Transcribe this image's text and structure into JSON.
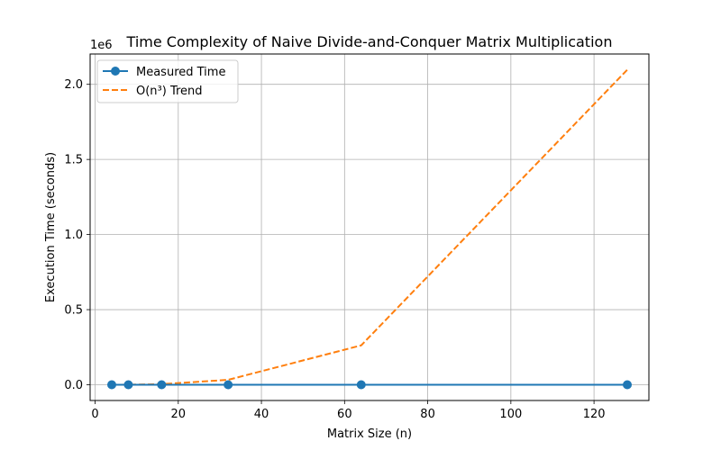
{
  "chart_data": {
    "type": "line",
    "title": "Time Complexity of Naive Divide-and-Conquer Matrix Multiplication",
    "xlabel": "Matrix Size (n)",
    "ylabel": "Execution Time (seconds)",
    "y_offset_label": "1e6",
    "xlim": [
      -1.2,
      133.2
    ],
    "ylim": [
      -104856,
      2201971
    ],
    "y_scale_factor": 1000000,
    "x_ticks": [
      0,
      20,
      40,
      60,
      80,
      100,
      120
    ],
    "y_ticks": [
      0,
      500000,
      1000000,
      1500000,
      2000000
    ],
    "y_tick_labels": [
      "0.0",
      "0.5",
      "1.0",
      "1.5",
      "2.0"
    ],
    "grid": true,
    "legend_position": "top-left",
    "series": [
      {
        "name": "Measured Time",
        "color": "#1f77b4",
        "style": "solid-with-markers",
        "x": [
          4,
          8,
          16,
          32,
          64,
          128
        ],
        "y": [
          0,
          0,
          0,
          0,
          0.001,
          0.01
        ]
      },
      {
        "name": "O(n³) Trend",
        "color": "#ff7f0e",
        "style": "dashed",
        "x": [
          4,
          8,
          16,
          32,
          64,
          128
        ],
        "y": [
          64,
          512,
          4096,
          32768,
          262144,
          2097152
        ]
      }
    ]
  }
}
